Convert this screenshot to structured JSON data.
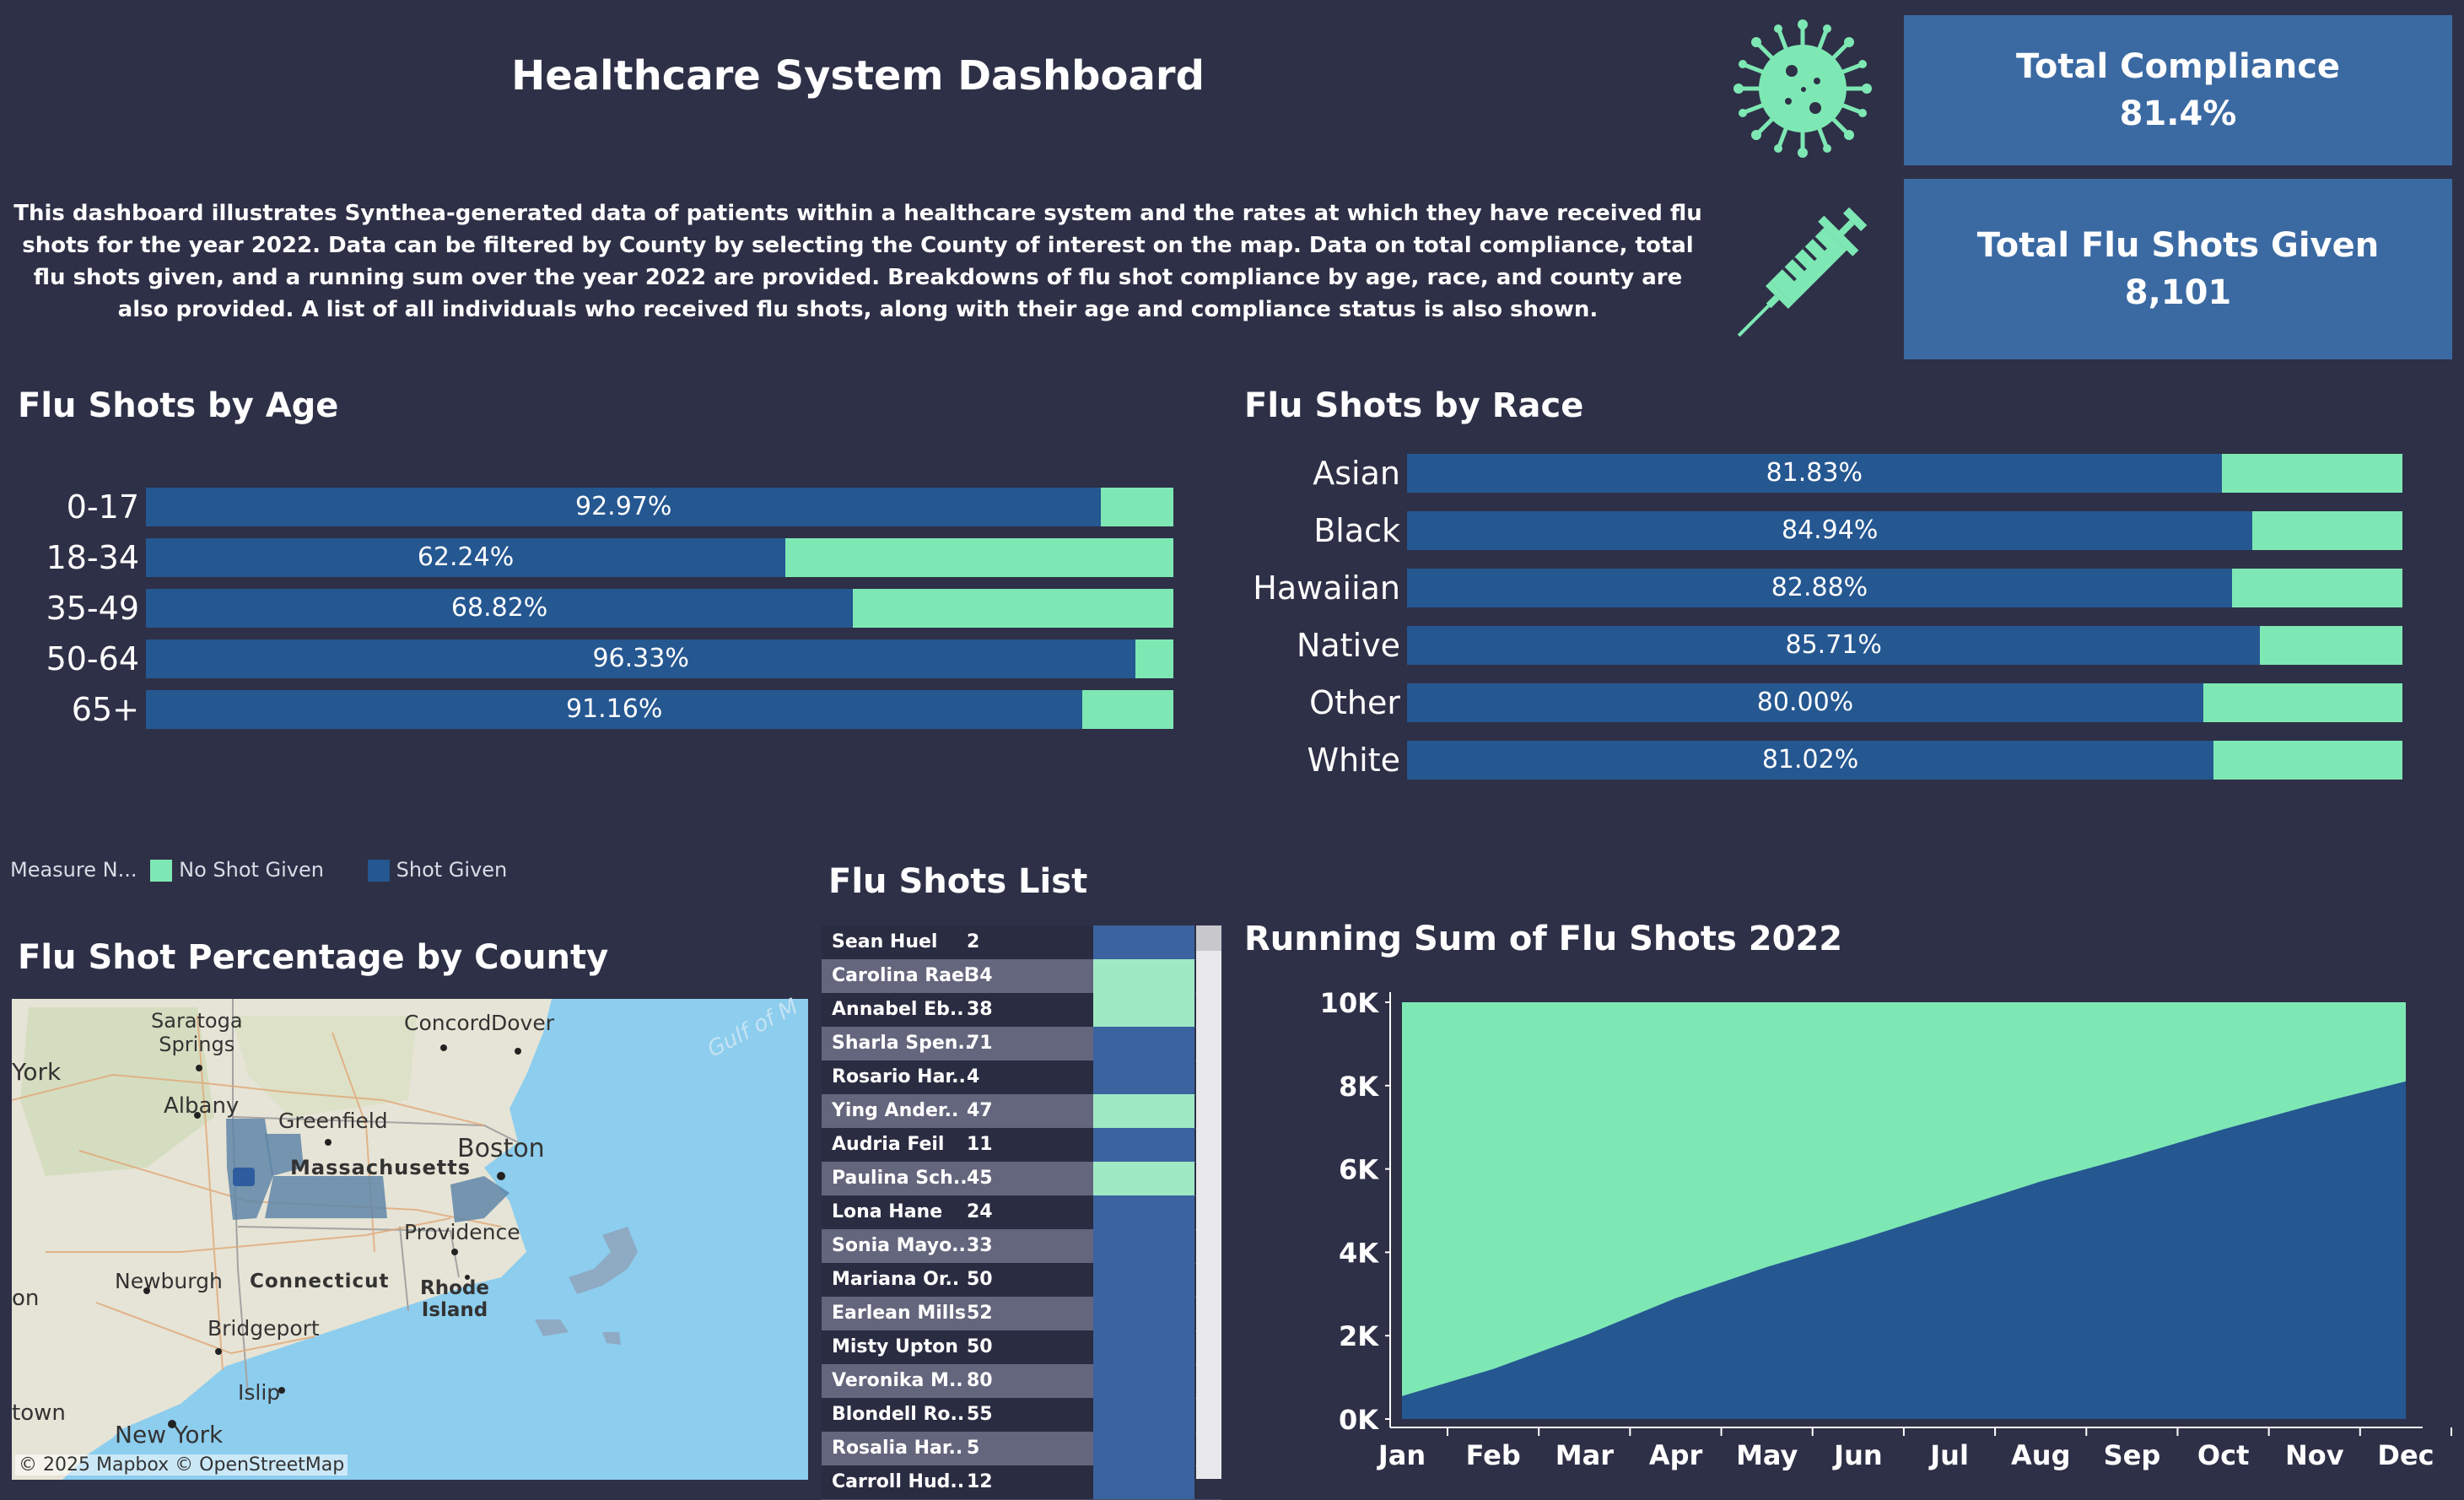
{
  "header": {
    "title": "Healthcare System Dashboard",
    "description": "This dashboard illustrates Synthea-generated data of patients within a healthcare system and the rates at which they have received flu shots for the year 2022. Data can be filtered by County by selecting the County of interest on the map. Data on total compliance, total flu shots given, and a running sum over the year 2022 are provided. Breakdowns of flu shot compliance by age, race, and county are also provided. A list of all individuals who received flu shots, along with their age and compliance status is also shown."
  },
  "icons": {
    "virus": "virus-icon",
    "syringe": "syringe-icon"
  },
  "kpis": {
    "compliance_label": "Total Compliance",
    "compliance_value": "81.4%",
    "shots_label": "Total Flu Shots Given",
    "shots_value": "8,101"
  },
  "colors": {
    "background": "#2e3047",
    "shot_given": "#255791",
    "no_shot": "#7ee8b4",
    "kpi_box": "#3b6aa3"
  },
  "age": {
    "title": "Flu Shots by Age",
    "rows": [
      {
        "label": "0-17",
        "value": "92.97%",
        "pct": 92.97
      },
      {
        "label": "18-34",
        "value": "62.24%",
        "pct": 62.24
      },
      {
        "label": "35-49",
        "value": "68.82%",
        "pct": 68.82
      },
      {
        "label": "50-64",
        "value": "96.33%",
        "pct": 96.33
      },
      {
        "label": "65+",
        "value": "91.16%",
        "pct": 91.16
      }
    ]
  },
  "race": {
    "title": "Flu Shots by Race",
    "rows": [
      {
        "label": "Asian",
        "value": "81.83%",
        "pct": 81.83
      },
      {
        "label": "Black",
        "value": "84.94%",
        "pct": 84.94
      },
      {
        "label": "Hawaiian",
        "value": "82.88%",
        "pct": 82.88
      },
      {
        "label": "Native",
        "value": "85.71%",
        "pct": 85.71
      },
      {
        "label": "Other",
        "value": "80.00%",
        "pct": 80.0
      },
      {
        "label": "White",
        "value": "81.02%",
        "pct": 81.02
      }
    ]
  },
  "legend": {
    "title": "Measure N...",
    "no_shot_label": "No Shot Given",
    "shot_label": "Shot Given"
  },
  "county": {
    "title": "Flu Shot Percentage by County",
    "attribution": "© 2025 Mapbox  © OpenStreetMap",
    "labels": {
      "saratoga": "Saratoga",
      "springs": "Springs",
      "concord": "Concord",
      "dover": "Dover",
      "york": "York",
      "albany": "Albany",
      "greenfield": "Greenfield",
      "massachusetts": "Massachusetts",
      "boston": "Boston",
      "providence": "Providence",
      "newburgh": "Newburgh",
      "connecticut": "Connecticut",
      "rhode": "Rhode",
      "island": "Island",
      "bridgeport": "Bridgeport",
      "islip": "Islip",
      "new_york": "New York",
      "own": "town",
      "on": "on",
      "gulf": "Gulf of M"
    }
  },
  "list": {
    "title": "Flu Shots List",
    "rows": [
      {
        "name": "Sean Huel",
        "age": "2",
        "status": "Shot Given"
      },
      {
        "name": "Carolina Rael",
        "age": "34",
        "status": "No Shot Given"
      },
      {
        "name": "Annabel Eb..",
        "age": "38",
        "status": "No Shot Given"
      },
      {
        "name": "Sharla Spen..",
        "age": "71",
        "status": "Shot Given"
      },
      {
        "name": "Rosario Har..",
        "age": "4",
        "status": "Shot Given"
      },
      {
        "name": "Ying Ander..",
        "age": "47",
        "status": "No Shot Given"
      },
      {
        "name": "Audria Feil",
        "age": "11",
        "status": "Shot Given"
      },
      {
        "name": "Paulina Sch..",
        "age": "45",
        "status": "No Shot Given"
      },
      {
        "name": "Lona Hane",
        "age": "24",
        "status": "Shot Given"
      },
      {
        "name": "Sonia Mayo..",
        "age": "33",
        "status": "Shot Given"
      },
      {
        "name": "Mariana Or..",
        "age": "50",
        "status": "Shot Given"
      },
      {
        "name": "Earlean Mills",
        "age": "52",
        "status": "Shot Given"
      },
      {
        "name": "Misty Upton",
        "age": "50",
        "status": "Shot Given"
      },
      {
        "name": "Veronika M..",
        "age": "80",
        "status": "Shot Given"
      },
      {
        "name": "Blondell Ro..",
        "age": "55",
        "status": "Shot Given"
      },
      {
        "name": "Rosalia Har..",
        "age": "5",
        "status": "Shot Given"
      },
      {
        "name": "Carroll Hud..",
        "age": "12",
        "status": "Shot Given"
      }
    ]
  },
  "chart_data": {
    "type": "area",
    "title": "Running Sum of Flu Shots 2022",
    "categories": [
      "Jan",
      "Feb",
      "Mar",
      "Apr",
      "May",
      "Jun",
      "Jul",
      "Aug",
      "Sep",
      "Oct",
      "Nov",
      "Dec"
    ],
    "series": [
      {
        "name": "Shot Given",
        "values": [
          550,
          1200,
          2000,
          2900,
          3650,
          4300,
          5000,
          5700,
          6300,
          6950,
          7550,
          8101
        ]
      },
      {
        "name": "No Shot Given",
        "values": [
          9450,
          8800,
          8000,
          7100,
          6350,
          5700,
          5000,
          4300,
          3700,
          3050,
          2450,
          1899
        ]
      }
    ],
    "yticks": [
      "0K",
      "2K",
      "4K",
      "6K",
      "8K",
      "10K"
    ],
    "ylim": [
      0,
      10000
    ],
    "stacked": true
  }
}
